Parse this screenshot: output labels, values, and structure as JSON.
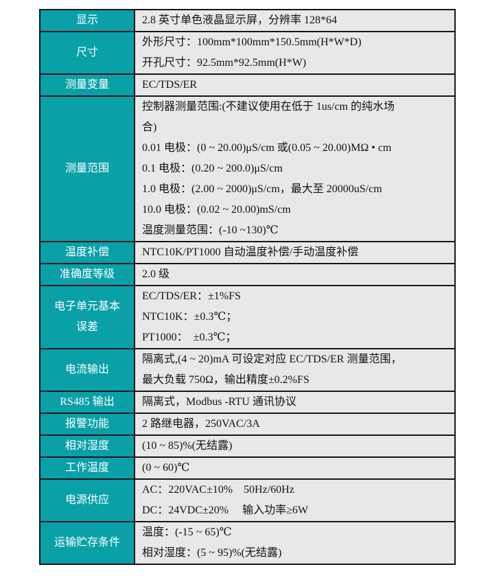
{
  "colors": {
    "header_teal": "#0AA0A8",
    "cell_background": "#E8E8E8",
    "border": "#161616",
    "label_text": "#FFFFFF",
    "value_text": "#111111"
  },
  "table": {
    "rows": [
      {
        "label": "显示",
        "lines": [
          "2.8 英寸单色液晶显示屏，分辨率 128*64"
        ]
      },
      {
        "label": "尺寸",
        "lines": [
          "外形尺寸：100mm*100mm*150.5mm(H*W*D)",
          "开孔尺寸：92.5mm*92.5mm(H*W)"
        ]
      },
      {
        "label": "测量变量",
        "lines": [
          "EC/TDS/ER"
        ]
      },
      {
        "label": "测量范围",
        "lines": [
          "控制器测量范围:(不建议使用在低于 1us/cm 的纯水场",
          "合)",
          "0.01 电极：(0 ~ 20.00)μS/cm 或(0.05 ~ 20.00)MΩ • cm",
          "0.1 电极：(0.20 ~ 200.0)μS/cm",
          "1.0 电极：(2.00 ~ 2000)μS/cm，最大至 20000uS/cm",
          "10.0 电极：(0.02 ~ 20.00)mS/cm",
          "温度测量范围：(-10 ~130)℃"
        ]
      },
      {
        "label": "温度补偿",
        "lines": [
          "NTC10K/PT1000 自动温度补偿/手动温度补偿"
        ]
      },
      {
        "label": "准确度等级",
        "lines": [
          "2.0 级"
        ]
      },
      {
        "label": "电子单元基本误差",
        "lines": [
          "EC/TDS/ER：±1%FS",
          "NTC10K：±0.3℃；",
          "PT1000：  ±0.3℃；"
        ]
      },
      {
        "label": "电流输出",
        "lines": [
          "隔离式,(4 ~ 20)mA 可设定对应 EC/TDS/ER 测量范围，",
          "最大负载 750Ω，输出精度±0.2%FS"
        ]
      },
      {
        "label": "RS485 输出",
        "lines": [
          "隔离式，Modbus -RTU 通讯协议"
        ]
      },
      {
        "label": "报警功能",
        "lines": [
          "2 路继电器，250VAC/3A"
        ]
      },
      {
        "label": "相对湿度",
        "lines": [
          "(10 ~ 85)%(无结露)"
        ]
      },
      {
        "label": "工作温度",
        "lines": [
          "(0 ~ 60)℃"
        ]
      },
      {
        "label": "电源供应",
        "lines": [
          "AC：220VAC±10%    50Hz/60Hz",
          "DC：24VDC±20%     输入功率≥6W"
        ]
      },
      {
        "label": "运输贮存条件",
        "lines": [
          "温度：(-15 ~ 65)℃",
          "相对湿度：(5 ~ 95)%(无结露)"
        ]
      }
    ]
  }
}
